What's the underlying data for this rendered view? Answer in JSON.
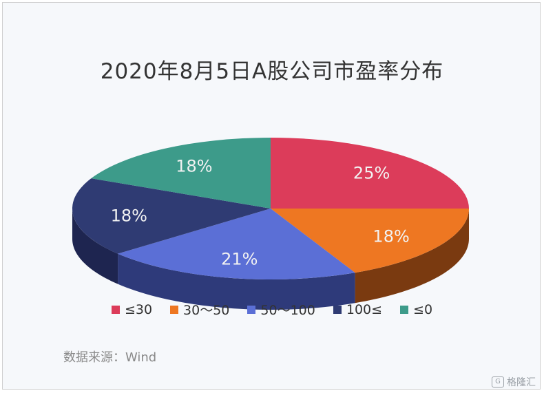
{
  "chart_data": {
    "type": "pie",
    "title": "2020年8月5日A股公司市盈率分布",
    "slices": [
      {
        "label": "≤30",
        "value": 25,
        "display": "25%",
        "color": "#dc3c5a",
        "side_color": "#8e2036"
      },
      {
        "label": "30～50",
        "value": 18,
        "display": "18%",
        "color": "#ee7722",
        "side_color": "#7a3a10"
      },
      {
        "label": "50～100",
        "value": 21,
        "display": "21%",
        "color": "#5b6fd6",
        "side_color": "#2e3a7a"
      },
      {
        "label": "100≤",
        "value": 18,
        "display": "18%",
        "color": "#2f3b73",
        "side_color": "#1e2550"
      },
      {
        "label": "≤0",
        "value": 18,
        "display": "18%",
        "color": "#3d9b8a",
        "side_color": "#235c52"
      }
    ],
    "legend_position": "bottom"
  },
  "source": "数据来源：Wind",
  "watermark": "格隆汇"
}
